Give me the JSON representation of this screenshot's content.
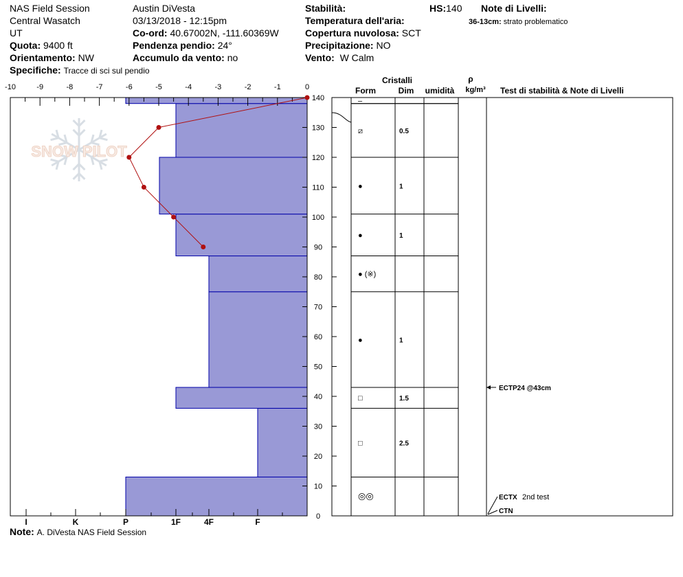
{
  "header": {
    "location_name": "NAS Field Session",
    "range": "Central Wasatch",
    "state": "UT",
    "elevation_label": "Quota:",
    "elevation_value": "9400 ft",
    "aspect_label": "Orientamento:",
    "aspect_value": "NW",
    "specifics_label": "Specifiche:",
    "specifics_value": "Tracce di sci sul pendio",
    "observer": "Austin DiVesta",
    "datetime": "03/13/2018 - 12:15pm",
    "coord_label": "Co-ord:",
    "coord_value": "40.67002N, -111.60369W",
    "slope_label": "Pendenza pendio:",
    "slope_value": "24°",
    "wind_loading_label": "Accumulo da vento:",
    "wind_loading_value": "no",
    "stability_label": "Stabilità:",
    "stability_value": "",
    "air_temp_label": "Temperatura dell'aria:",
    "air_temp_value": "",
    "cloud_label": "Copertura nuvolosa:",
    "cloud_value": "SCT",
    "precip_label": "Precipitazione:",
    "precip_value": "NO",
    "wind_label": "Vento:",
    "wind_value": "W Calm",
    "hs_label": "HS:",
    "hs_value": "140",
    "layer_notes_label": "Note di Livelli:",
    "layer_note_range": "36-13cm:",
    "layer_note_text": "strato problematico"
  },
  "footer": {
    "note_label": "Note:",
    "note_value": "A. DiVesta NAS Field Session"
  },
  "watermark": "SNOW PILOT",
  "columns": {
    "crystals": "Cristalli",
    "form": "Form",
    "size": "Dim",
    "moisture": "umidità",
    "rho": "ρ",
    "density_unit": "kg/m³",
    "tests": "Test di stabilità & Note di Livelli"
  },
  "colors": {
    "hardness_fill": "#9999d6",
    "hardness_edge": "#0000a8",
    "temp_line": "#b01010"
  },
  "chart_data": {
    "type": "snow_profile",
    "y_axis": {
      "ticks": [
        0,
        10,
        20,
        30,
        40,
        50,
        60,
        70,
        80,
        90,
        100,
        110,
        120,
        130,
        140
      ],
      "range": [
        0,
        140
      ]
    },
    "temperature_axis": {
      "ticks": [
        -10,
        -9,
        -8,
        -7,
        -6,
        -5,
        -4,
        -3,
        -2,
        -1,
        0
      ],
      "range": [
        -10,
        0
      ]
    },
    "hardness_axis": {
      "labels": [
        "I",
        "K",
        "P",
        "1F",
        "4F",
        "F"
      ]
    },
    "hardness_layers": [
      {
        "bottom": 0,
        "top": 13,
        "hardness": "P"
      },
      {
        "bottom": 13,
        "top": 36,
        "hardness": "4F-F"
      },
      {
        "bottom": 36,
        "top": 43,
        "hardness": "1F"
      },
      {
        "bottom": 43,
        "top": 75,
        "hardness": "1F-4F"
      },
      {
        "bottom": 75,
        "top": 87,
        "hardness": "1F-4F"
      },
      {
        "bottom": 87,
        "top": 101,
        "hardness": "1F"
      },
      {
        "bottom": 101,
        "top": 120,
        "hardness": "P-1F"
      },
      {
        "bottom": 120,
        "top": 138,
        "hardness": "1F"
      },
      {
        "bottom": 138,
        "top": 140,
        "hardness": "P"
      }
    ],
    "temperature_profile": [
      {
        "depth": 140,
        "temp": 0
      },
      {
        "depth": 130,
        "temp": -5
      },
      {
        "depth": 120,
        "temp": -6
      },
      {
        "depth": 110,
        "temp": -5.5
      },
      {
        "depth": 100,
        "temp": -4.5
      },
      {
        "depth": 90,
        "temp": -3.5
      }
    ],
    "layer_rows": [
      {
        "bottom": 138,
        "top": 140,
        "form": "–",
        "size": ""
      },
      {
        "bottom": 120,
        "top": 138,
        "form": "⧄",
        "size": "0.5"
      },
      {
        "bottom": 101,
        "top": 120,
        "form": "●",
        "size": "1"
      },
      {
        "bottom": 87,
        "top": 101,
        "form": "●",
        "size": "1"
      },
      {
        "bottom": 75,
        "top": 87,
        "form": "● (※)",
        "size": ""
      },
      {
        "bottom": 43,
        "top": 75,
        "form": "●",
        "size": "1"
      },
      {
        "bottom": 36,
        "top": 43,
        "form": "□",
        "size": "1.5"
      },
      {
        "bottom": 13,
        "top": 36,
        "form": "□",
        "size": "2.5"
      },
      {
        "bottom": 0,
        "top": 13,
        "form": "◎◎",
        "size": ""
      }
    ],
    "stability_tests": [
      {
        "depth": 43,
        "label": "ECTP24 @43cm"
      },
      {
        "depth": 0,
        "label": "ECTX",
        "extra": "2nd test"
      },
      {
        "depth": 0,
        "label": "CTN"
      }
    ]
  }
}
